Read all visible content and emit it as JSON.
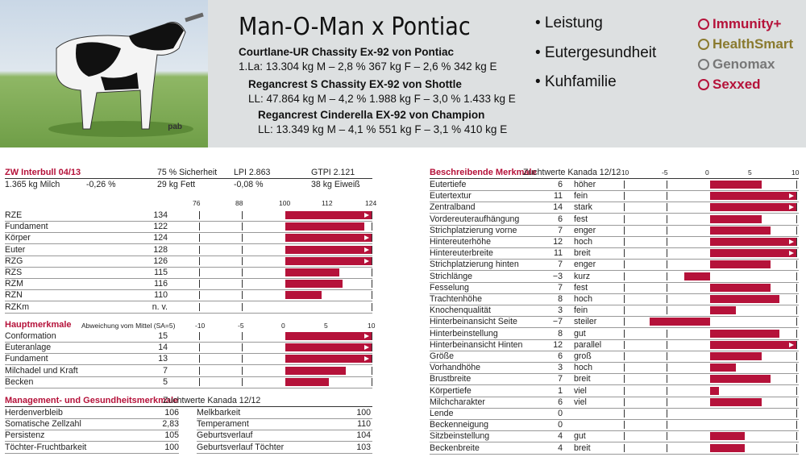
{
  "header": {
    "watermark": "pab",
    "title": "Man-O-Man x Pontiac",
    "pedigree": [
      {
        "name": "Courtlane-UR Chassity Ex-92 von Pontiac",
        "perf": "1.La: 13.304 kg M – 2,8 %  367 kg F – 2,6 % 342 kg E"
      },
      {
        "name": "Regancrest S Chassity EX-92 von Shottle",
        "perf": "LL: 47.864 kg M – 4,2 % 1.988 kg F – 3,0 % 1.433 kg E"
      },
      {
        "name": "Regancrest Cinderella EX-92 von Champion",
        "perf": "LL: 13.349 kg M – 4,1 % 551 kg F – 3,1 % 410 kg E"
      }
    ],
    "bullets": [
      "• Leistung",
      "• Eutergesundheit",
      "• Kuhfamilie"
    ],
    "logos": [
      {
        "label": "Immunity+",
        "color": "#b5123a"
      },
      {
        "label": "HealthSmart",
        "color": "#8a7a2e"
      },
      {
        "label": "Genomax",
        "color": "#777777"
      },
      {
        "label": "Sexxed",
        "color": "#b5123a"
      }
    ]
  },
  "interbull": {
    "title": "ZW Interbull 04/13",
    "sicherheit": "75 % Sicherheit",
    "lpi": "LPI 2.863",
    "gtpi": "GTPI 2.121",
    "milch": "1.365 kg Milch",
    "milch_pct": "-0,26 %",
    "fett": "29 kg Fett",
    "fett_pct": "-0,08 %",
    "eiweiss": "38 kg Eiweiß",
    "scale": [
      "76",
      "88",
      "100",
      "112",
      "124"
    ],
    "rows": [
      {
        "label": "RZE",
        "value": "134",
        "num": 134
      },
      {
        "label": "Fundament",
        "value": "122",
        "num": 122
      },
      {
        "label": "Körper",
        "value": "124",
        "num": 124
      },
      {
        "label": "Euter",
        "value": "128",
        "num": 128
      },
      {
        "label": "RZG",
        "value": "126",
        "num": 126
      },
      {
        "label": "RZS",
        "value": "115",
        "num": 115
      },
      {
        "label": "RZM",
        "value": "116",
        "num": 116
      },
      {
        "label": "RZN",
        "value": "110",
        "num": 110
      },
      {
        "label": "RZKm",
        "value": "n. v.",
        "num": null
      }
    ]
  },
  "haupt": {
    "title": "Hauptmerkmale",
    "subtitle": "Abweichung vom Mittel (SA=5)",
    "scale": [
      "-10",
      "-5",
      "0",
      "5",
      "10"
    ],
    "rows": [
      {
        "label": "Conformation",
        "value": "15",
        "num": 15
      },
      {
        "label": "Euteranlage",
        "value": "14",
        "num": 14
      },
      {
        "label": "Fundament",
        "value": "13",
        "num": 13
      },
      {
        "label": "Milchadel und Kraft",
        "value": "7",
        "num": 7
      },
      {
        "label": "Becken",
        "value": "5",
        "num": 5
      }
    ]
  },
  "mgmt": {
    "title": "Management- und Gesundheitsmerkmale",
    "subtitle": "Zuchtwerte Kanada 12/12",
    "left": [
      {
        "label": "Herdenverbleib",
        "value": "106"
      },
      {
        "label": "Somatische Zellzahl",
        "value": "2,83"
      },
      {
        "label": "Persistenz",
        "value": "105"
      },
      {
        "label": "Töchter-Fruchtbarkeit",
        "value": "100"
      }
    ],
    "right": [
      {
        "label": "Melkbarkeit",
        "value": "100"
      },
      {
        "label": "Temperament",
        "value": "110"
      },
      {
        "label": "Geburtsverlauf",
        "value": "104"
      },
      {
        "label": "Geburtsverlauf Töchter",
        "value": "103"
      }
    ]
  },
  "beschreibend": {
    "title": "Beschreibende Merkmale",
    "subtitle": "Zuchtwerte Kanada 12/12",
    "scale": [
      "-10",
      "-5",
      "0",
      "5",
      "10"
    ],
    "rows": [
      {
        "label": "Eutertiefe",
        "value": "6",
        "num": 6,
        "desc": "höher"
      },
      {
        "label": "Eutertextur",
        "value": "11",
        "num": 11,
        "desc": "fein"
      },
      {
        "label": "Zentralband",
        "value": "14",
        "num": 14,
        "desc": "stark"
      },
      {
        "label": "Vordereuteraufhängung",
        "value": "6",
        "num": 6,
        "desc": "fest"
      },
      {
        "label": "Strichplatzierung vorne",
        "value": "7",
        "num": 7,
        "desc": "enger"
      },
      {
        "label": "Hintereuterhöhe",
        "value": "12",
        "num": 12,
        "desc": "hoch"
      },
      {
        "label": "Hintereuterbreite",
        "value": "11",
        "num": 11,
        "desc": "breit"
      },
      {
        "label": "Strichplatzierung hinten",
        "value": "7",
        "num": 7,
        "desc": "enger"
      },
      {
        "label": "Strichlänge",
        "value": "−3",
        "num": -3,
        "desc": "kurz"
      },
      {
        "label": "Fesselung",
        "value": "7",
        "num": 7,
        "desc": "fest"
      },
      {
        "label": "Trachtenhöhe",
        "value": "8",
        "num": 8,
        "desc": "hoch"
      },
      {
        "label": "Knochenqualität",
        "value": "3",
        "num": 3,
        "desc": "fein"
      },
      {
        "label": "Hinterbeinansicht Seite",
        "value": "−7",
        "num": -7,
        "desc": "steiler"
      },
      {
        "label": "Hinterbeinstellung",
        "value": "8",
        "num": 8,
        "desc": "gut"
      },
      {
        "label": "Hinterbeinansicht Hinten",
        "value": "12",
        "num": 12,
        "desc": "parallel"
      },
      {
        "label": "Größe",
        "value": "6",
        "num": 6,
        "desc": "groß"
      },
      {
        "label": "Vorhandhöhe",
        "value": "3",
        "num": 3,
        "desc": "hoch"
      },
      {
        "label": "Brustbreite",
        "value": "7",
        "num": 7,
        "desc": "breit"
      },
      {
        "label": "Körpertiefe",
        "value": "1",
        "num": 1,
        "desc": "viel"
      },
      {
        "label": "Milchcharakter",
        "value": "6",
        "num": 6,
        "desc": "viel"
      },
      {
        "label": "Lende",
        "value": "0",
        "num": 0,
        "desc": ""
      },
      {
        "label": "Beckenneigung",
        "value": "0",
        "num": 0,
        "desc": ""
      },
      {
        "label": "Sitzbeinstellung",
        "value": "4",
        "num": 4,
        "desc": "gut"
      },
      {
        "label": "Beckenbreite",
        "value": "4",
        "num": 4,
        "desc": "breit"
      }
    ]
  }
}
